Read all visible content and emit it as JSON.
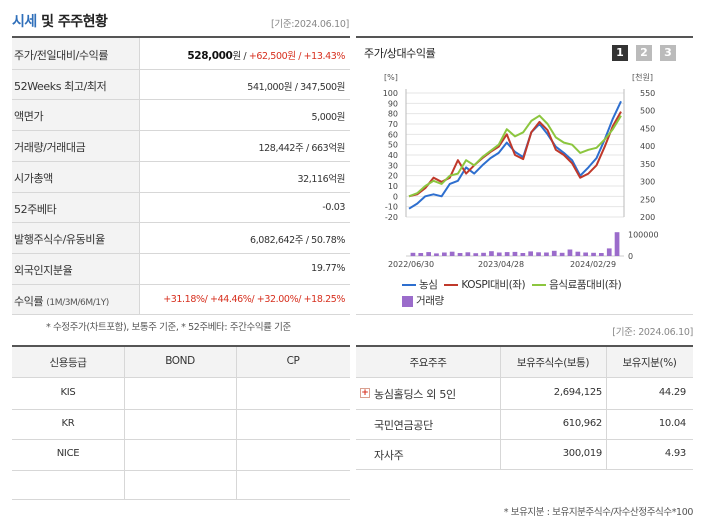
{
  "header": {
    "title_prefix": "시세",
    "title_suffix": " 및 주주현황",
    "stamp": "[기준:2024.06.10]"
  },
  "quote_table": {
    "rows": [
      {
        "label": "주가/전일대비/수익률",
        "price": "528,000",
        "price_unit": "원 / ",
        "change": "+62,500원 / +13.43%"
      },
      {
        "label": "52Weeks 최고/최저",
        "value": "541,000원 / 347,500원"
      },
      {
        "label": "액면가",
        "value": "5,000원"
      },
      {
        "label": "거래량/거래대금",
        "value": "128,442주 / 663억원"
      },
      {
        "label": "시가총액",
        "value": "32,116억원"
      },
      {
        "label": "52주베타",
        "value": "-0.03"
      },
      {
        "label": "발행주식수/유동비율",
        "value": "6,082,642주 / 50.78%"
      },
      {
        "label": "외국인지분율",
        "value": "19.77%"
      },
      {
        "label": "수익률",
        "label_sub": "(1M/3M/6M/1Y)",
        "value": "+31.18%/ +44.46%/ +32.00%/ +18.25%"
      }
    ],
    "footnote": "* 수정주가(차트포함), 보통주 기준, * 52주베타: 주간수익률 기준"
  },
  "chart_panel": {
    "title": "주가/상대수익률",
    "pages": [
      "1",
      "2",
      "3"
    ],
    "active_page": "1",
    "left_unit": "[%]",
    "right_unit": "[천원]",
    "stamp": "[기준: 2024.06.10]"
  },
  "chart_data": {
    "type": "line",
    "x_labels": [
      "2022/06/30",
      "2023/04/28",
      "2024/02/29"
    ],
    "y_left": {
      "label": "[%]",
      "ticks": [
        -20,
        -10,
        0,
        10,
        20,
        30,
        40,
        50,
        60,
        70,
        80,
        90,
        100
      ],
      "lim": [
        -20,
        100
      ]
    },
    "y_right": {
      "label": "[천원]",
      "ticks": [
        200,
        250,
        300,
        350,
        400,
        450,
        500,
        550
      ],
      "lim": [
        200,
        550
      ]
    },
    "series": [
      {
        "name": "농심",
        "color": "#2e6fcf",
        "axis": "left",
        "values": [
          -12,
          -7,
          0,
          2,
          0,
          12,
          15,
          28,
          22,
          30,
          37,
          42,
          52,
          43,
          38,
          62,
          70,
          60,
          48,
          42,
          35,
          20,
          28,
          37,
          55,
          75,
          92
        ]
      },
      {
        "name": "KOSPI대비(좌)",
        "color": "#c0392b",
        "axis": "left",
        "values": [
          0,
          2,
          8,
          18,
          14,
          18,
          35,
          22,
          30,
          37,
          43,
          48,
          60,
          40,
          36,
          62,
          72,
          64,
          45,
          40,
          32,
          18,
          22,
          30,
          48,
          68,
          82
        ]
      },
      {
        "name": "음식료품대비(좌)",
        "color": "#8cc63f",
        "axis": "left",
        "values": [
          0,
          3,
          10,
          15,
          12,
          20,
          22,
          35,
          30,
          38,
          44,
          50,
          65,
          58,
          62,
          73,
          78,
          70,
          57,
          52,
          50,
          42,
          45,
          47,
          55,
          65,
          78
        ]
      }
    ],
    "volume": {
      "name": "거래량",
      "color": "#9b6ccb",
      "ticks": [
        0,
        100000
      ],
      "values": [
        15000,
        14000,
        18000,
        12000,
        16000,
        20000,
        14000,
        17000,
        13000,
        15000,
        22000,
        16000,
        18000,
        19000,
        14000,
        21000,
        17000,
        16000,
        24000,
        15000,
        30000,
        20000,
        16000,
        15000,
        14000,
        35000,
        110000
      ]
    }
  },
  "credit_table": {
    "headers": [
      "신용등급",
      "BOND",
      "CP"
    ],
    "rows": [
      [
        "KIS",
        "",
        ""
      ],
      [
        "KR",
        "",
        ""
      ],
      [
        "NICE",
        "",
        ""
      ],
      [
        "",
        "",
        ""
      ]
    ]
  },
  "holder_table": {
    "headers": [
      "주요주주",
      "보유주식수(보통)",
      "보유지분(%)"
    ],
    "rows": [
      {
        "name": "농심홀딩스 외 5인",
        "shares": "2,694,125",
        "pct": "44.29",
        "expand": "+"
      },
      {
        "name": "국민연금공단",
        "shares": "610,962",
        "pct": "10.04"
      },
      {
        "name": "자사주",
        "shares": "300,019",
        "pct": "4.93"
      }
    ],
    "footnote": "* 보유지분 : 보유지분주식수/자수산정주식수*100"
  }
}
